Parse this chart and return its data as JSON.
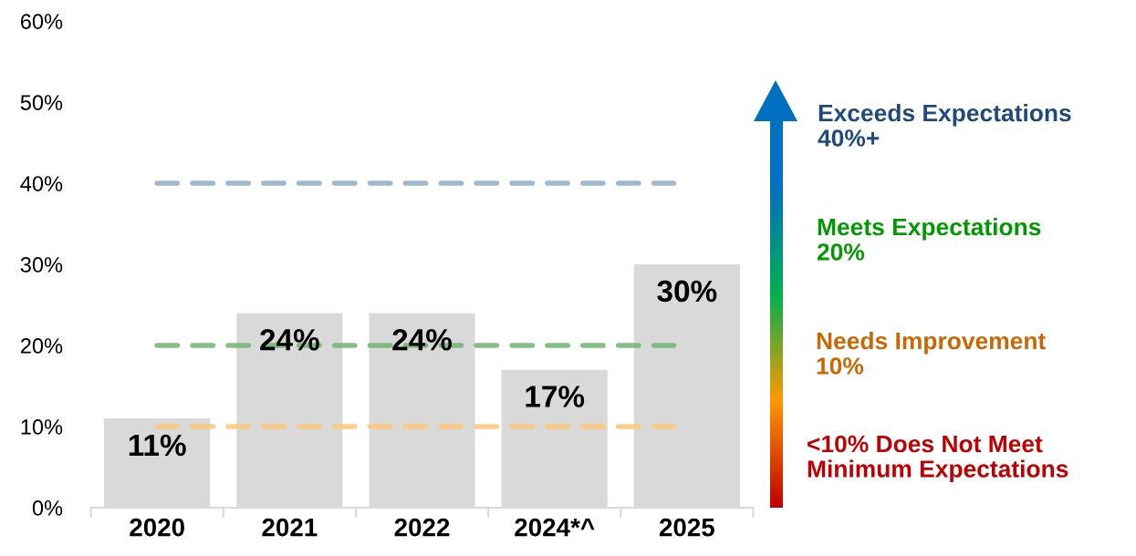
{
  "chart_data": {
    "type": "bar",
    "categories": [
      "2020",
      "2021",
      "2022",
      "2024*^",
      "2025"
    ],
    "values": [
      11,
      24,
      24,
      17,
      30
    ],
    "color": "#d9d9d9",
    "data_labels": true,
    "value_labels": [
      "11%",
      "24%",
      "24%",
      "17%",
      "30%"
    ],
    "ylim": [
      0,
      60
    ],
    "yticks": [
      {
        "value": 0,
        "label": "0%"
      },
      {
        "value": 10,
        "label": "10%"
      },
      {
        "value": 20,
        "label": "20%"
      },
      {
        "value": 30,
        "label": "30%"
      },
      {
        "value": 40,
        "label": "40%"
      },
      {
        "value": 50,
        "label": "50%"
      },
      {
        "value": 60,
        "label": "60%"
      }
    ],
    "grid": false,
    "legend": false,
    "ref_lines": [
      {
        "axis": "y",
        "value": 40,
        "color": "#8faac8",
        "line_style": "dashed"
      },
      {
        "axis": "y",
        "value": 20,
        "color": "#6fb46f",
        "line_style": "dashed"
      },
      {
        "axis": "y",
        "value": 10,
        "color": "#ffc776",
        "line_style": "dashed"
      }
    ],
    "annotations": [
      "Exceeds Expectations\n40%+",
      "Meets Expectations\n20%",
      "Needs Improvement\n10%",
      "<10% Does Not Meet\nMinimum Expectations"
    ]
  }
}
